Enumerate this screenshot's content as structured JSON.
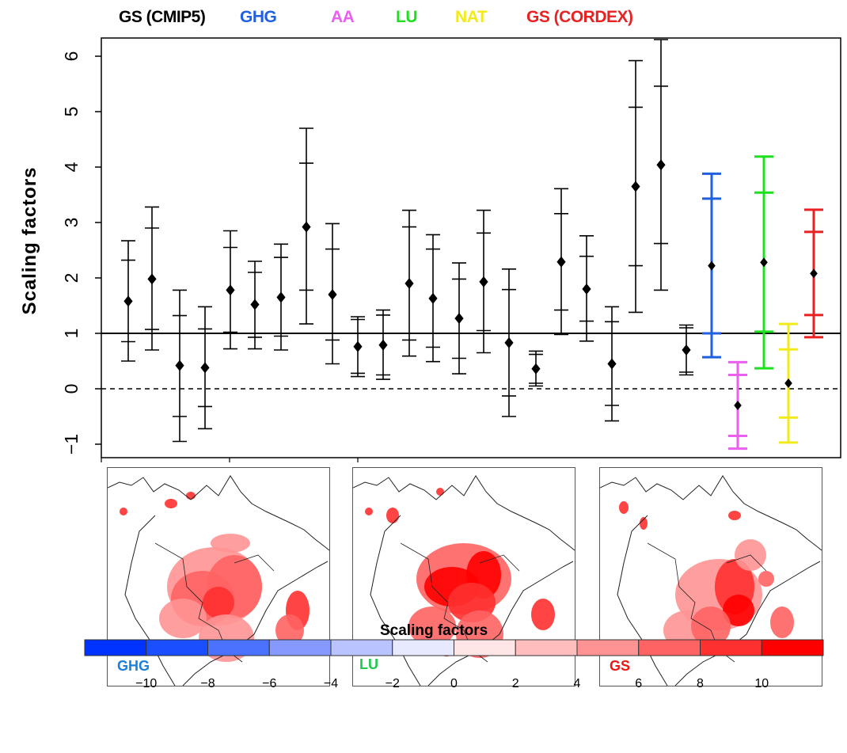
{
  "legend": [
    {
      "label": "GS (CMIP5)",
      "color": "#000000"
    },
    {
      "label": "GHG",
      "color": "#1f5fe0"
    },
    {
      "label": "AA",
      "color": "#ea5ef0"
    },
    {
      "label": "LU",
      "color": "#1ee01e"
    },
    {
      "label": "NAT",
      "color": "#f2ea1a"
    },
    {
      "label": "GS (CORDEX)",
      "color": "#e82222"
    }
  ],
  "chart_data": [
    {
      "type": "scatter",
      "title": "",
      "xlabel": "",
      "ylabel": "Scaling factors",
      "ylim": [
        -1.25,
        6.3
      ],
      "yticks": [
        "−1",
        "0",
        "1",
        "2",
        "3",
        "4",
        "5",
        "6"
      ],
      "reference_lines": [
        {
          "y": 1,
          "style": "solid"
        },
        {
          "y": 0,
          "style": "dashed"
        }
      ],
      "grid": false,
      "legend_position": "top",
      "series": [
        {
          "name": "GS (CMIP5)",
          "color": "#000000",
          "points": [
            {
              "best": 1.58,
              "inner": [
                0.85,
                2.32
              ],
              "outer": [
                0.5,
                2.67
              ]
            },
            {
              "best": 1.98,
              "inner": [
                1.07,
                2.9
              ],
              "outer": [
                0.7,
                3.28
              ]
            },
            {
              "best": 0.42,
              "inner": [
                -0.5,
                1.32
              ],
              "outer": [
                -0.95,
                1.78
              ]
            },
            {
              "best": 0.38,
              "inner": [
                -0.32,
                1.08
              ],
              "outer": [
                -0.72,
                1.48
              ]
            },
            {
              "best": 1.78,
              "inner": [
                1.02,
                2.55
              ],
              "outer": [
                0.72,
                2.85
              ]
            },
            {
              "best": 1.52,
              "inner": [
                0.93,
                2.1
              ],
              "outer": [
                0.72,
                2.3
              ]
            },
            {
              "best": 1.65,
              "inner": [
                0.95,
                2.37
              ],
              "outer": [
                0.7,
                2.61
              ]
            },
            {
              "best": 2.92,
              "inner": [
                1.78,
                4.07
              ],
              "outer": [
                1.17,
                4.7
              ]
            },
            {
              "best": 1.7,
              "inner": [
                0.88,
                2.52
              ],
              "outer": [
                0.45,
                2.98
              ]
            },
            {
              "best": 0.76,
              "inner": [
                0.28,
                1.25
              ],
              "outer": [
                0.22,
                1.3
              ]
            },
            {
              "best": 0.79,
              "inner": [
                0.25,
                1.33
              ],
              "outer": [
                0.17,
                1.42
              ]
            },
            {
              "best": 1.9,
              "inner": [
                0.88,
                2.92
              ],
              "outer": [
                0.59,
                3.22
              ]
            },
            {
              "best": 1.63,
              "inner": [
                0.75,
                2.52
              ],
              "outer": [
                0.49,
                2.78
              ]
            },
            {
              "best": 1.27,
              "inner": [
                0.55,
                1.98
              ],
              "outer": [
                0.27,
                2.27
              ]
            },
            {
              "best": 1.93,
              "inner": [
                1.05,
                2.81
              ],
              "outer": [
                0.65,
                3.22
              ]
            },
            {
              "best": 0.83,
              "inner": [
                -0.13,
                1.79
              ],
              "outer": [
                -0.5,
                2.16
              ]
            },
            {
              "best": 0.36,
              "inner": [
                0.1,
                0.62
              ],
              "outer": [
                0.05,
                0.68
              ]
            },
            {
              "best": 2.29,
              "inner": [
                1.42,
                3.16
              ],
              "outer": [
                0.98,
                3.61
              ]
            },
            {
              "best": 1.8,
              "inner": [
                1.22,
                2.39
              ],
              "outer": [
                0.86,
                2.76
              ]
            },
            {
              "best": 0.45,
              "inner": [
                -0.3,
                1.21
              ],
              "outer": [
                -0.58,
                1.48
              ]
            },
            {
              "best": 3.65,
              "inner": [
                2.22,
                5.08
              ],
              "outer": [
                1.38,
                5.92
              ]
            },
            {
              "best": 4.04,
              "inner": [
                2.62,
                5.46
              ],
              "outer": [
                1.78,
                6.3
              ]
            },
            {
              "best": 0.7,
              "inner": [
                0.3,
                1.1
              ],
              "outer": [
                0.25,
                1.15
              ]
            }
          ]
        },
        {
          "name": "GHG",
          "color": "#1f5fe0",
          "points": [
            {
              "best": 2.22,
              "inner": [
                1.0,
                3.43
              ],
              "outer": [
                0.57,
                3.88
              ]
            }
          ]
        },
        {
          "name": "AA",
          "color": "#ea5ef0",
          "points": [
            {
              "best": -0.3,
              "inner": [
                -0.85,
                0.25
              ],
              "outer": [
                -1.08,
                0.48
              ]
            }
          ]
        },
        {
          "name": "LU",
          "color": "#1ee01e",
          "points": [
            {
              "best": 2.28,
              "inner": [
                1.03,
                3.54
              ],
              "outer": [
                0.37,
                4.19
              ]
            }
          ]
        },
        {
          "name": "NAT",
          "color": "#f2ea1a",
          "points": [
            {
              "best": 0.1,
              "inner": [
                -0.52,
                0.71
              ],
              "outer": [
                -0.97,
                1.17
              ]
            }
          ]
        },
        {
          "name": "GS (CORDEX)",
          "color": "#e82222",
          "points": [
            {
              "best": 2.08,
              "inner": [
                1.33,
                2.83
              ],
              "outer": [
                0.93,
                3.23
              ]
            }
          ]
        }
      ]
    },
    {
      "type": "heatmap",
      "colorbar_title": "Scaling factors",
      "colorbar_ticks": [
        "−10",
        "−8",
        "−6",
        "−4",
        "−2",
        "0",
        "2",
        "4",
        "6",
        "8",
        "10"
      ],
      "colorbar_bins": [
        -12,
        -10,
        -8,
        -6,
        -4,
        -2,
        0,
        2,
        4,
        6,
        8,
        10,
        12
      ],
      "colorbar_colors": [
        "#0033ff",
        "#1a4fff",
        "#4a72ff",
        "#8599ff",
        "#b9c3ff",
        "#e6e9ff",
        "#ffe6e6",
        "#ffbdbd",
        "#ff9393",
        "#ff6363",
        "#ff3030",
        "#ff0000"
      ],
      "panels": [
        {
          "label": "GHG",
          "label_color": "#1a7fd8"
        },
        {
          "label": "LU",
          "label_color": "#1ec94e"
        },
        {
          "label": "GS",
          "label_color": "#e81818"
        }
      ]
    }
  ]
}
